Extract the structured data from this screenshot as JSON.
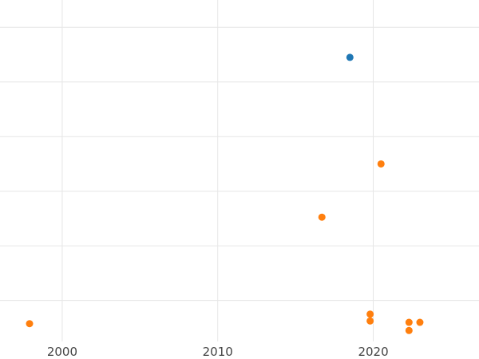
{
  "chart_data": {
    "type": "scatter",
    "title": "",
    "xlabel": "",
    "ylabel": "",
    "xlim": [
      1996,
      2026.8
    ],
    "ylim": [
      0,
      12.5
    ],
    "grid": true,
    "legend": "none",
    "x_ticks": [
      2000,
      2010,
      2020
    ],
    "y_gridlines": [
      1.5,
      3.5,
      5.5,
      7.5,
      9.5,
      11.5
    ],
    "series": [
      {
        "color": "#1f77b4",
        "points": [
          {
            "x": 2018.5,
            "y": 10.4
          }
        ]
      },
      {
        "color": "#ff7f0e",
        "points": [
          {
            "x": 1997.9,
            "y": 0.65
          },
          {
            "x": 2016.7,
            "y": 4.55
          },
          {
            "x": 2019.8,
            "y": 1.0
          },
          {
            "x": 2019.8,
            "y": 0.75
          },
          {
            "x": 2020.5,
            "y": 6.5
          },
          {
            "x": 2022.3,
            "y": 0.7
          },
          {
            "x": 2022.3,
            "y": 0.4
          },
          {
            "x": 2023.0,
            "y": 0.7
          }
        ]
      }
    ]
  }
}
